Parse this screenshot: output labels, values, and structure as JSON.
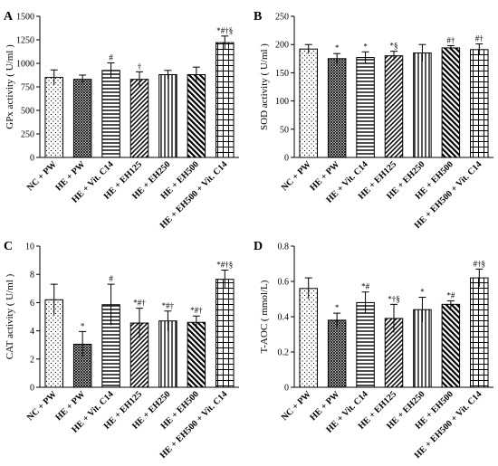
{
  "categories": [
    "NC + PW",
    "HE + PW",
    "HE + Vit. C14",
    "HE + EH125",
    "HE + EH250",
    "HE + EH500",
    "HE + EH500 + Vit. C14"
  ],
  "bar_patterns": [
    "dots",
    "crosshatch",
    "horizontal",
    "diagonal-rev",
    "vertical",
    "diagonal",
    "grid"
  ],
  "chart_data": [
    {
      "type": "bar",
      "panel": "A",
      "ylabel": "GPx activity ( U/ml )",
      "ylim": [
        0,
        1500
      ],
      "yticks": [
        0,
        250,
        500,
        750,
        1000,
        1250,
        1500
      ],
      "values": [
        850,
        830,
        925,
        830,
        880,
        880,
        1220
      ],
      "errors": [
        80,
        45,
        80,
        80,
        45,
        80,
        70
      ],
      "annotations": [
        "",
        "",
        "#",
        "†",
        "",
        "",
        "*#†§"
      ]
    },
    {
      "type": "bar",
      "panel": "B",
      "ylabel": "SOD activity ( U/ml )",
      "ylim": [
        0,
        250
      ],
      "yticks": [
        0,
        50,
        100,
        150,
        200,
        250
      ],
      "values": [
        192,
        175,
        177,
        180,
        185,
        194,
        191
      ],
      "errors": [
        8,
        9,
        10,
        8,
        15,
        4,
        10
      ],
      "annotations": [
        "",
        "*",
        "*",
        "*§",
        "",
        "#†",
        "#†"
      ]
    },
    {
      "type": "bar",
      "panel": "C",
      "ylabel": "CAT activity ( U/ml )",
      "ylim": [
        0,
        10
      ],
      "yticks": [
        0,
        2,
        4,
        6,
        8,
        10
      ],
      "values": [
        6.2,
        3.05,
        5.85,
        4.55,
        4.7,
        4.6,
        7.65
      ],
      "errors": [
        1.1,
        0.9,
        1.45,
        1.05,
        0.7,
        0.45,
        0.65
      ],
      "annotations": [
        "",
        "*",
        "#",
        "*#†",
        "*#†",
        "*#†",
        "*#†§"
      ]
    },
    {
      "type": "bar",
      "panel": "D",
      "ylabel": "T-AOC ( mmol/L)",
      "ylim": [
        0,
        0.8
      ],
      "yticks": [
        0,
        0.2,
        0.4,
        0.6,
        0.8
      ],
      "values": [
        0.56,
        0.38,
        0.48,
        0.39,
        0.44,
        0.47,
        0.62
      ],
      "errors": [
        0.06,
        0.04,
        0.06,
        0.08,
        0.07,
        0.02,
        0.05
      ],
      "annotations": [
        "",
        "*",
        "*#",
        "*†§",
        "*",
        "*#",
        "#†§"
      ]
    }
  ]
}
